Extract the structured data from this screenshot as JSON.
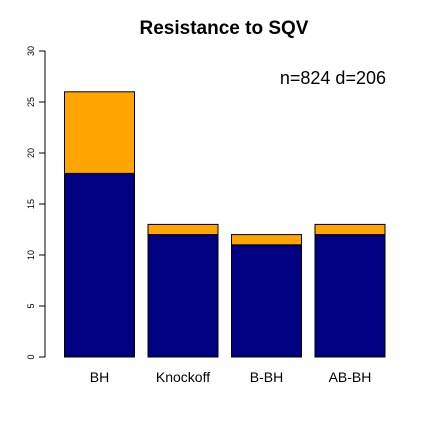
{
  "chart_data": {
    "type": "bar",
    "stacked": true,
    "title": "Resistance to SQV",
    "annotation": "n=824 d=206",
    "xlabel": "",
    "ylabel": "",
    "categories": [
      "BH",
      "Knockoff",
      "B-BH",
      "AB-BH"
    ],
    "series": [
      {
        "color": "#000080",
        "values": [
          18,
          12,
          11,
          12
        ]
      },
      {
        "color": "#FFA500",
        "values": [
          8,
          1,
          1,
          1
        ]
      }
    ],
    "ylim": [
      0,
      30
    ],
    "yticks": [
      0,
      5,
      10,
      15,
      20,
      25,
      30
    ],
    "grid": false,
    "legend": "none"
  }
}
